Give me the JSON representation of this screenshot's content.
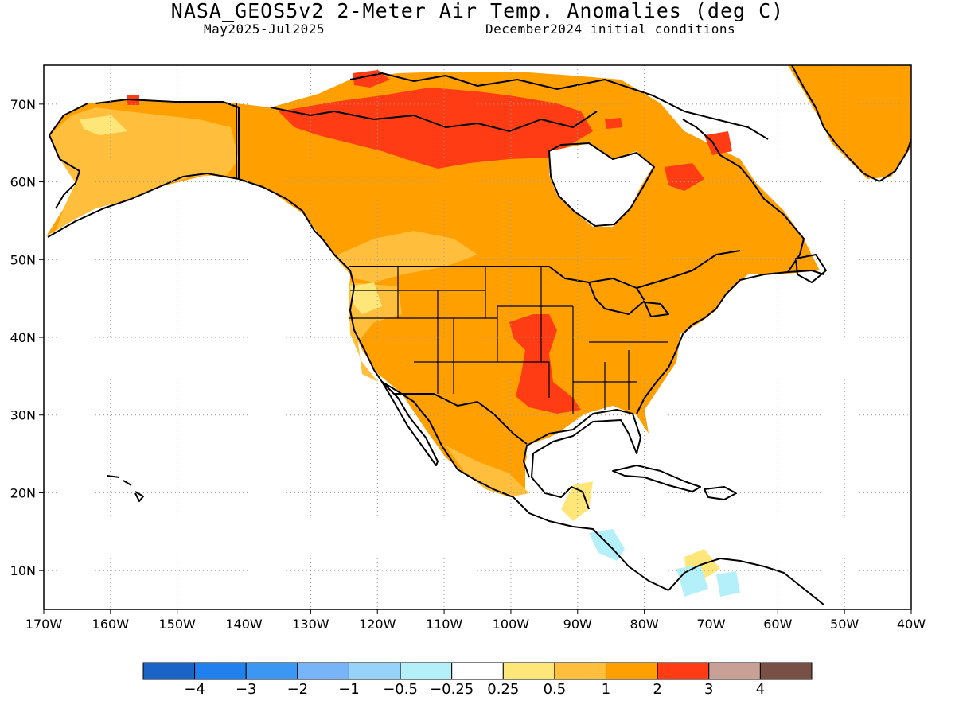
{
  "header": {
    "title": "NASA_GEOS5v2 2-Meter Air Temp. Anomalies (deg C)",
    "period": "May2025-Jul2025",
    "initial": "December2024 initial conditions"
  },
  "map": {
    "lon_range": [
      -170,
      -40
    ],
    "lat_range": [
      5,
      75
    ],
    "lon_ticks": [
      {
        "value": -170,
        "label": "170W"
      },
      {
        "value": -160,
        "label": "160W"
      },
      {
        "value": -150,
        "label": "150W"
      },
      {
        "value": -140,
        "label": "140W"
      },
      {
        "value": -130,
        "label": "130W"
      },
      {
        "value": -120,
        "label": "120W"
      },
      {
        "value": -110,
        "label": "110W"
      },
      {
        "value": -100,
        "label": "100W"
      },
      {
        "value": -90,
        "label": "90W"
      },
      {
        "value": -80,
        "label": "80W"
      },
      {
        "value": -70,
        "label": "70W"
      },
      {
        "value": -60,
        "label": "60W"
      },
      {
        "value": -50,
        "label": "50W"
      },
      {
        "value": -40,
        "label": "40W"
      }
    ],
    "lat_ticks": [
      {
        "value": 10,
        "label": "10N"
      },
      {
        "value": 20,
        "label": "20N"
      },
      {
        "value": 30,
        "label": "30N"
      },
      {
        "value": 40,
        "label": "40N"
      },
      {
        "value": 50,
        "label": "50N"
      },
      {
        "value": 60,
        "label": "60N"
      },
      {
        "value": 70,
        "label": "70N"
      }
    ],
    "gridlines": "dotted"
  },
  "colorbar": {
    "colors": [
      "#1a64c8",
      "#2080ee",
      "#3c96f4",
      "#78b4f8",
      "#96d2fa",
      "#b4f0fa",
      "#ffffff",
      "#ffe678",
      "#ffbe3c",
      "#ffa000",
      "#ff3c14",
      "#c8a096",
      "#785046"
    ],
    "labels": [
      "-4",
      "-3",
      "-2",
      "-1",
      "-0.5",
      "-0.25",
      "0.25",
      "0.5",
      "1",
      "2",
      "3",
      "4"
    ]
  },
  "colors": {
    "slight_warm": "#ffe678",
    "warm": "#ffbe3c",
    "warmer": "#ffa000",
    "hot": "#ff3c14",
    "cool": "#b4f0fa",
    "coast": "#000000"
  }
}
